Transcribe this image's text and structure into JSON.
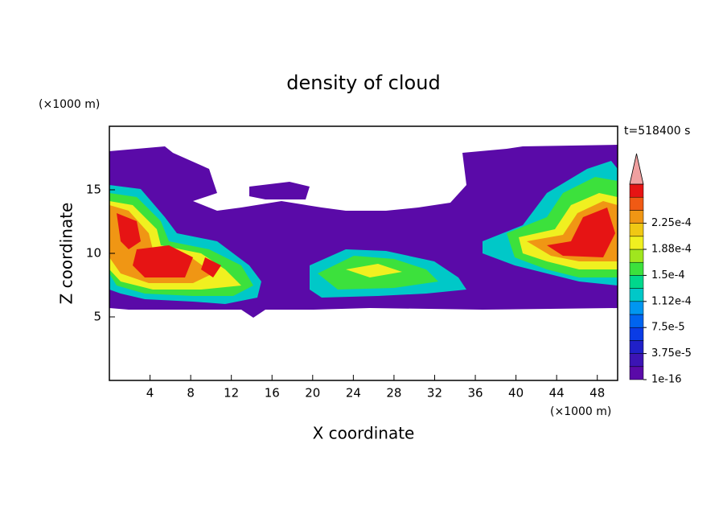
{
  "chart_data": {
    "type": "contour",
    "title": "density of cloud",
    "x_label": "X coordinate",
    "y_label": "Z coordinate",
    "x_unit": "(×1000 m)",
    "y_unit": "(×1000 m)",
    "time_label": "t=518400 s",
    "xlim": [
      0,
      50
    ],
    "xticks": [
      4,
      8,
      12,
      16,
      20,
      24,
      28,
      32,
      36,
      40,
      44,
      48
    ],
    "ylim": [
      0,
      20
    ],
    "yticks": [
      5,
      10,
      15
    ],
    "colorbar": {
      "levels": [
        1e-16,
        {
          "value": 3.75e-05,
          "label": "3.75e-5"
        },
        {
          "value": 7.5e-05,
          "label": "7.5e-5"
        },
        {
          "value": 0.000112,
          "label": "1.12e-4"
        },
        {
          "value": 0.00015,
          "label": "1.5e-4"
        },
        {
          "value": 0.000188,
          "label": "1.88e-4"
        },
        {
          "value": 0.000225,
          "label": "2.25e-4"
        }
      ],
      "colors": [
        "#5a0aa8",
        "#3c14b4",
        "#2020c8",
        "#0a3ce6",
        "#0064f0",
        "#0096f0",
        "#00c8c8",
        "#00d88c",
        "#3ce13c",
        "#a0e61e",
        "#f0f020",
        "#f0c814",
        "#f09614",
        "#f05a14",
        "#e61414"
      ],
      "overflow_color": "#f0a0a0"
    }
  }
}
